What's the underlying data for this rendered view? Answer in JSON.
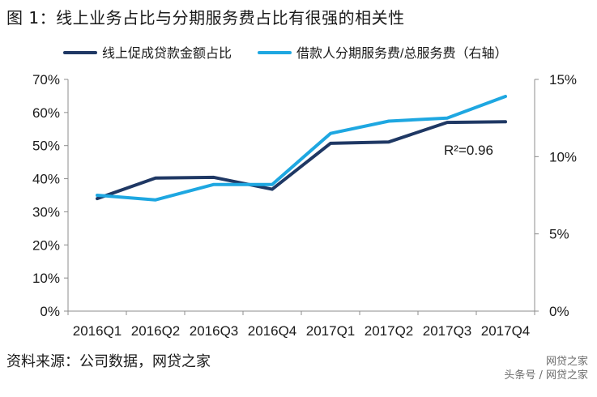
{
  "figure": {
    "title": "图 1：线上业务占比与分期服务费占比有很强的相关性",
    "source": "资料来源：公司数据，网贷之家",
    "watermark_line1": "网贷之家",
    "watermark_line2": "头条号 / 网贷之家"
  },
  "chart_data": {
    "type": "line",
    "categories": [
      "2016Q1",
      "2016Q2",
      "2016Q3",
      "2016Q4",
      "2017Q1",
      "2017Q2",
      "2017Q3",
      "2017Q4"
    ],
    "series": [
      {
        "name": "线上促成贷款金额占比",
        "axis": "left",
        "color": "#1f3864",
        "values": [
          34.0,
          40.2,
          40.4,
          36.8,
          50.7,
          51.1,
          57.0,
          57.2
        ]
      },
      {
        "name": "借款人分期服务费/总服务费（右轴）",
        "axis": "right",
        "color": "#1ea7e1",
        "values": [
          7.5,
          7.2,
          8.2,
          8.2,
          11.5,
          12.3,
          12.5,
          13.9
        ]
      }
    ],
    "y_left": {
      "min": 0,
      "max": 70,
      "step": 10,
      "ticks": [
        "0%",
        "10%",
        "20%",
        "30%",
        "40%",
        "50%",
        "60%",
        "70%"
      ]
    },
    "y_right": {
      "min": 0,
      "max": 15,
      "step": 5,
      "ticks": [
        "0%",
        "5%",
        "10%",
        "15%"
      ]
    },
    "annotation": "R²=0.96",
    "legend_position": "top",
    "grid": false
  }
}
